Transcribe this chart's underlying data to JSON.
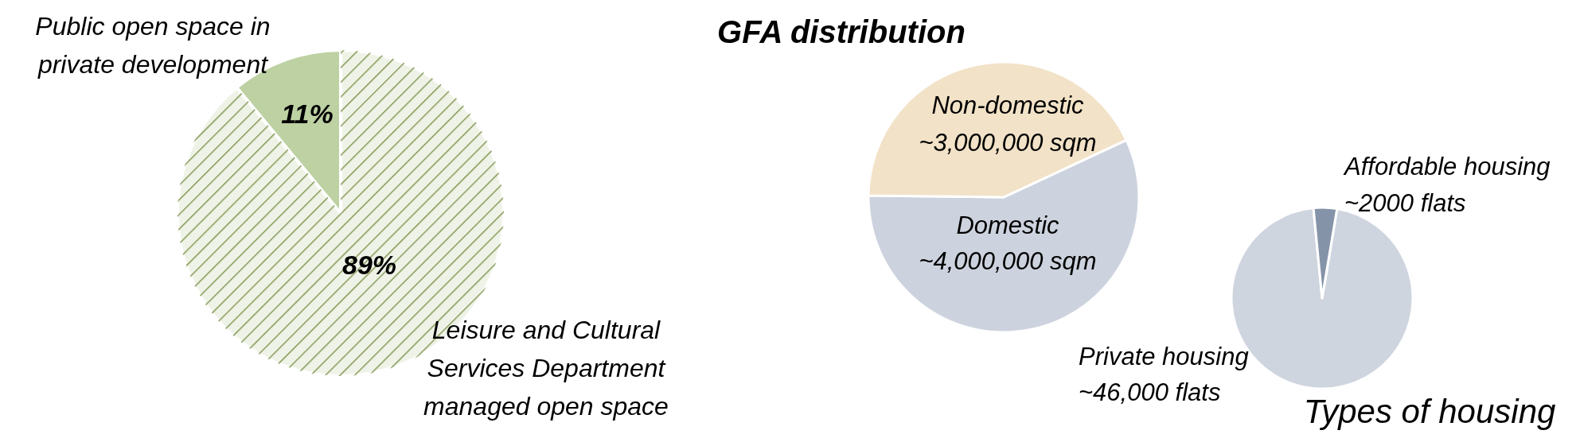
{
  "chart_data": [
    {
      "type": "pie",
      "categories": [
        "Leisure and Cultural Services Department managed open space",
        "Public open space in private development"
      ],
      "values": [
        89,
        11
      ],
      "colors": [
        "#eff3e7",
        "#bdd1a3"
      ],
      "value_labels": [
        "89%",
        "11%"
      ]
    },
    {
      "type": "pie",
      "title": "GFA distribution",
      "categories": [
        "Domestic",
        "Non-domestic"
      ],
      "values": [
        4000000,
        3000000
      ],
      "colors": [
        "#cdd3de",
        "#f2e2c7"
      ],
      "value_labels": [
        "~4,000,000 sqm",
        "~3,000,000 sqm"
      ]
    },
    {
      "type": "pie",
      "title": "Types of housing",
      "categories": [
        "Private housing",
        "Affordable housing"
      ],
      "values": [
        46000,
        2000
      ],
      "colors": [
        "#cfd5df",
        "#8593a8"
      ],
      "value_labels": [
        "~46,000 flats",
        "~2000 flats"
      ]
    }
  ]
}
